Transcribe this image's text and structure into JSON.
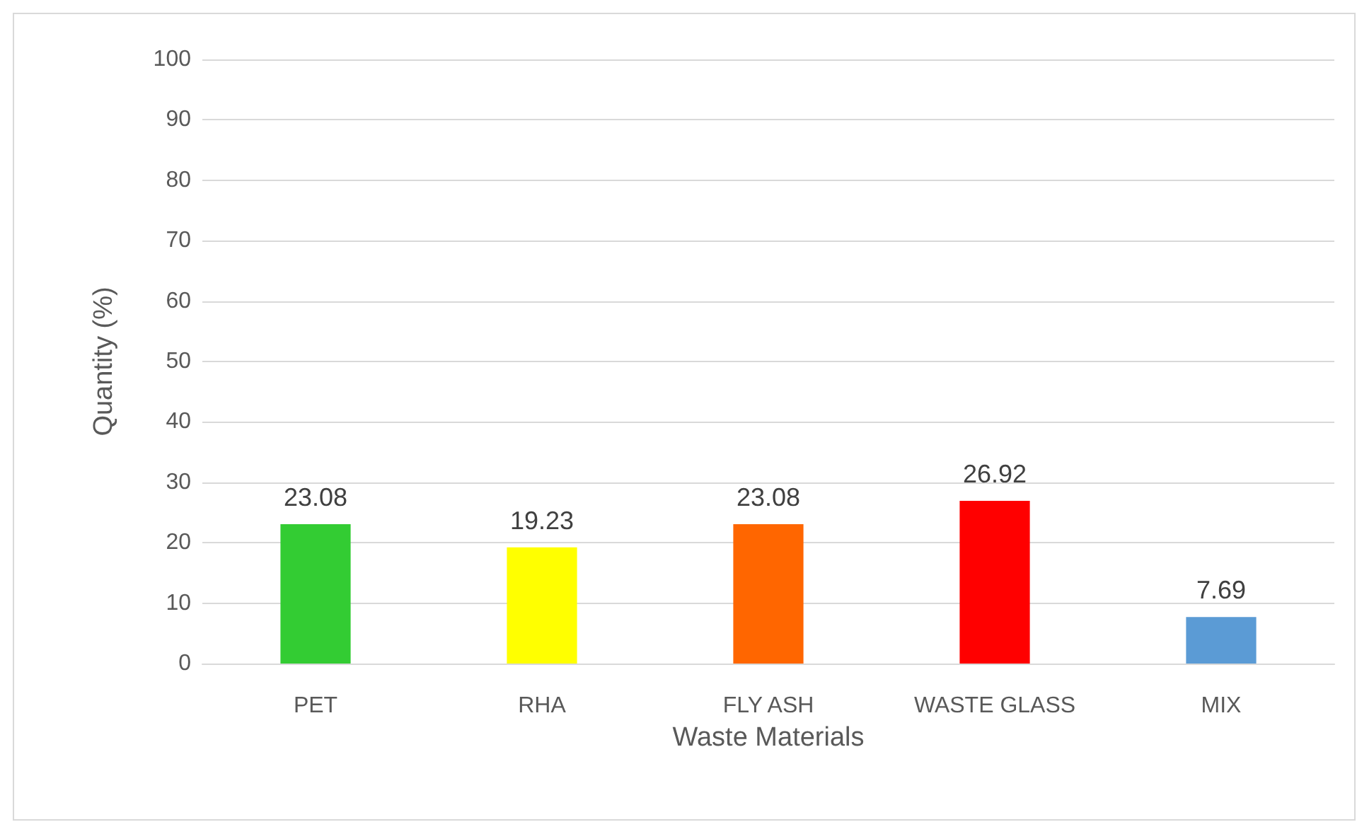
{
  "chart_data": {
    "type": "bar",
    "xlabel": "Waste Materials",
    "ylabel": "Quantity (%)",
    "categories": [
      "PET",
      "RHA",
      "FLY ASH",
      "WASTE GLASS",
      "MIX"
    ],
    "values": [
      23.08,
      19.23,
      23.08,
      26.92,
      7.69
    ],
    "colors": [
      "#33cc33",
      "#ffff00",
      "#ff6600",
      "#ff0000",
      "#5b9bd5"
    ],
    "ylim": [
      0,
      100
    ],
    "yticks": [
      0,
      10,
      20,
      30,
      40,
      50,
      60,
      70,
      80,
      90,
      100
    ],
    "grid": "y",
    "data_labels": true
  }
}
